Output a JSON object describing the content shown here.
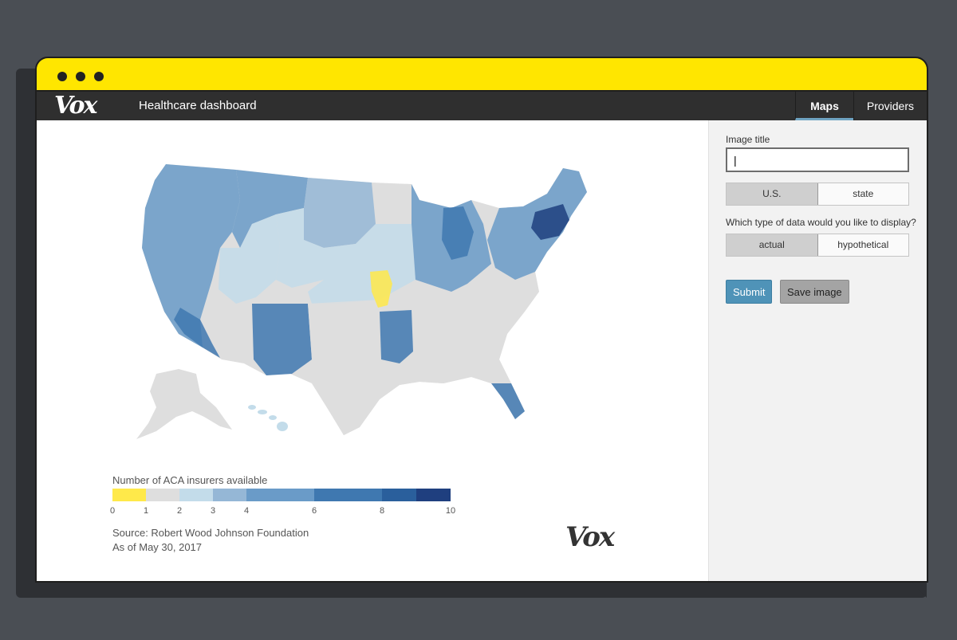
{
  "window": {
    "app_title": "Healthcare dashboard",
    "logo_text": "Vox"
  },
  "nav": {
    "tabs": [
      {
        "label": "Maps",
        "active": true
      },
      {
        "label": "Providers",
        "active": false
      }
    ]
  },
  "sidebar": {
    "image_title_label": "Image title",
    "image_title_value": "|",
    "scope_options": [
      {
        "label": "U.S.",
        "selected": true
      },
      {
        "label": "state",
        "selected": false
      }
    ],
    "data_type_question": "Which type of data would you like to display?",
    "data_type_options": [
      {
        "label": "actual",
        "selected": true
      },
      {
        "label": "hypothetical",
        "selected": false
      }
    ],
    "submit_label": "Submit",
    "save_label": "Save image"
  },
  "legend": {
    "title": "Number of ACA insurers available",
    "ticks": [
      "0",
      "1",
      "2",
      "3",
      "4",
      "6",
      "8",
      "10"
    ],
    "colors": [
      "#ffe94a",
      "#dedede",
      "#c3dcea",
      "#95b7d6",
      "#6a9bc8",
      "#3f78b0",
      "#2a5f9c",
      "#1f3f7f"
    ]
  },
  "map": {
    "colors": {
      "zero": "#ffe94a",
      "one": "#dedede",
      "two": "#c3dcea",
      "three": "#95b7d6",
      "four": "#6a9bc8",
      "six": "#3f78b0",
      "eight": "#2a5f9c",
      "ten": "#1f3f7f"
    }
  },
  "footer": {
    "source": "Source: Robert Wood Johnson Foundation",
    "date": "As of May 30, 2017",
    "watermark": "Vox"
  }
}
